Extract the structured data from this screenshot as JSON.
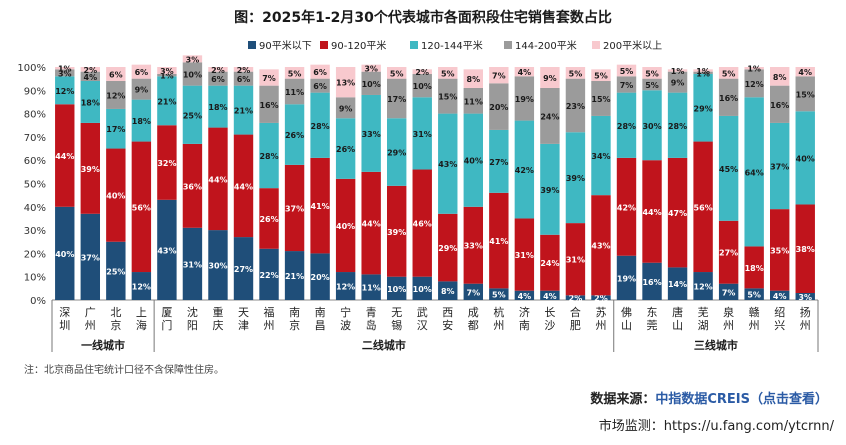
{
  "chart_data": {
    "type": "bar",
    "stacked": true,
    "title": "图：2025年1-2月30个代表城市各面积段住宅销售套数占比",
    "legend_position": "top",
    "y_ticks": [
      "0%",
      "10%",
      "20%",
      "30%",
      "40%",
      "50%",
      "60%",
      "70%",
      "80%",
      "90%",
      "100%"
    ],
    "ylim": [
      0,
      100
    ],
    "categories": [
      "深圳",
      "广州",
      "北京",
      "上海",
      "厦门",
      "沈阳",
      "重庆",
      "天津",
      "福州",
      "南京",
      "南昌",
      "宁波",
      "青岛",
      "无锡",
      "武汉",
      "西安",
      "成都",
      "杭州",
      "济南",
      "长沙",
      "合肥",
      "苏州",
      "佛山",
      "东莞",
      "唐山",
      "芜湖",
      "泉州",
      "赣州",
      "绍兴",
      "扬州"
    ],
    "groups": [
      {
        "label": "一线城市",
        "start": 0,
        "end": 3
      },
      {
        "label": "二线城市",
        "start": 4,
        "end": 21
      },
      {
        "label": "三线城市",
        "start": 22,
        "end": 29
      }
    ],
    "series": [
      {
        "name": "90平米以下",
        "color": "#1f4e79",
        "values": [
          40,
          37,
          25,
          12,
          43,
          31,
          30,
          27,
          22,
          21,
          20,
          12,
          11,
          10,
          10,
          8,
          7,
          5,
          4,
          4,
          2,
          2,
          19,
          16,
          14,
          12,
          7,
          5,
          4,
          3
        ]
      },
      {
        "name": "90-120平米",
        "color": "#c0141c",
        "values": [
          44,
          39,
          40,
          56,
          32,
          36,
          44,
          44,
          26,
          37,
          41,
          40,
          44,
          39,
          46,
          29,
          33,
          41,
          31,
          24,
          31,
          43,
          42,
          44,
          47,
          56,
          27,
          18,
          35,
          38
        ]
      },
      {
        "name": "120-144平米",
        "color": "#3fb8c2",
        "values": [
          12,
          18,
          17,
          18,
          21,
          25,
          18,
          21,
          28,
          26,
          28,
          26,
          33,
          29,
          31,
          43,
          40,
          27,
          42,
          39,
          39,
          34,
          28,
          30,
          28,
          29,
          45,
          64,
          37,
          40
        ]
      },
      {
        "name": "144-200平米",
        "color": "#9b9b9b",
        "values": [
          3,
          4,
          12,
          9,
          1,
          10,
          6,
          6,
          16,
          11,
          6,
          9,
          10,
          17,
          10,
          15,
          11,
          20,
          19,
          24,
          23,
          15,
          7,
          5,
          9,
          1,
          16,
          12,
          16,
          15
        ]
      },
      {
        "name": "200平米以上",
        "color": "#f8c9ce",
        "values": [
          1,
          2,
          6,
          6,
          3,
          3,
          2,
          2,
          7,
          5,
          6,
          13,
          3,
          5,
          2,
          5,
          8,
          7,
          4,
          9,
          5,
          5,
          5,
          5,
          1,
          1,
          5,
          1,
          8,
          4
        ]
      }
    ],
    "label_overrides": [
      {
        "series": 2,
        "category": 25,
        "text": "29%"
      },
      {
        "series": 3,
        "category": 25,
        "text": "1%"
      },
      {
        "series": 4,
        "category": 25,
        "text": "1%"
      },
      {
        "series": 4,
        "category": 27,
        "text": "1%"
      }
    ],
    "note": "注：北京商品住宅统计口径不含保障性住房。"
  },
  "footer": {
    "source_label": "数据来源：",
    "source_name": "中指数据CREIS（点击查看）",
    "monitor": "市场监测：https://u.fang.com/ytcrnn/"
  },
  "watermark": "中指数据"
}
